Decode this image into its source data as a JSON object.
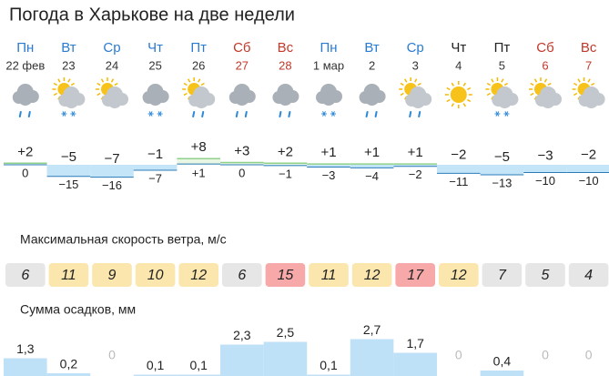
{
  "title": "Погода в Харькове на две недели",
  "wind_title": "Максимальная скорость ветра, м/с",
  "precip_title": "Сумма осадков, мм",
  "days": [
    {
      "weekday": "Пн",
      "date": "22 фев",
      "kind": "weekday",
      "icon": "cloudy-rain",
      "tmax": 2,
      "tmax_label": "+2",
      "tmin": 0,
      "tmin_label": "0",
      "wind": 6,
      "precip": 1.3,
      "precip_label": "1,3"
    },
    {
      "weekday": "Вт",
      "date": "23",
      "kind": "weekday",
      "icon": "partly-snow",
      "tmax": -5,
      "tmax_label": "−5",
      "tmin": -15,
      "tmin_label": "−15",
      "wind": 11,
      "precip": 0.2,
      "precip_label": "0,2"
    },
    {
      "weekday": "Ср",
      "date": "24",
      "kind": "weekday",
      "icon": "partly",
      "tmax": -7,
      "tmax_label": "−7",
      "tmin": -16,
      "tmin_label": "−16",
      "wind": 9,
      "precip": 0,
      "precip_label": "0"
    },
    {
      "weekday": "Чт",
      "date": "25",
      "kind": "weekday",
      "icon": "cloudy-snow",
      "tmax": -1,
      "tmax_label": "−1",
      "tmin": -7,
      "tmin_label": "−7",
      "wind": 10,
      "precip": 0.1,
      "precip_label": "0,1"
    },
    {
      "weekday": "Пт",
      "date": "26",
      "kind": "weekday",
      "icon": "partly-rain",
      "tmax": 8,
      "tmax_label": "+8",
      "tmin": 1,
      "tmin_label": "+1",
      "wind": 12,
      "precip": 0.1,
      "precip_label": "0,1"
    },
    {
      "weekday": "Сб",
      "date": "27",
      "kind": "weekend",
      "icon": "cloudy-rain",
      "tmax": 3,
      "tmax_label": "+3",
      "tmin": 0,
      "tmin_label": "0",
      "wind": 6,
      "precip": 2.3,
      "precip_label": "2,3"
    },
    {
      "weekday": "Вс",
      "date": "28",
      "kind": "weekend",
      "icon": "cloudy-rain",
      "tmax": 2,
      "tmax_label": "+2",
      "tmin": -1,
      "tmin_label": "−1",
      "wind": 15,
      "precip": 2.5,
      "precip_label": "2,5"
    },
    {
      "weekday": "Пн",
      "date": "1 мар",
      "kind": "weekday",
      "icon": "cloudy-snow",
      "tmax": 1,
      "tmax_label": "+1",
      "tmin": -3,
      "tmin_label": "−3",
      "wind": 11,
      "precip": 0.1,
      "precip_label": "0,1"
    },
    {
      "weekday": "Вт",
      "date": "2",
      "kind": "weekday",
      "icon": "cloudy-rain",
      "tmax": 1,
      "tmax_label": "+1",
      "tmin": -4,
      "tmin_label": "−4",
      "wind": 12,
      "precip": 2.7,
      "precip_label": "2,7"
    },
    {
      "weekday": "Ср",
      "date": "3",
      "kind": "weekday",
      "icon": "partly-rain",
      "tmax": 1,
      "tmax_label": "+1",
      "tmin": -2,
      "tmin_label": "−2",
      "wind": 17,
      "precip": 1.7,
      "precip_label": "1,7"
    },
    {
      "weekday": "Чт",
      "date": "4",
      "kind": "plain",
      "icon": "sun",
      "tmax": -2,
      "tmax_label": "−2",
      "tmin": -11,
      "tmin_label": "−11",
      "wind": 12,
      "precip": 0,
      "precip_label": "0"
    },
    {
      "weekday": "Пт",
      "date": "5",
      "kind": "plain",
      "icon": "partly-snow",
      "tmax": -5,
      "tmax_label": "−5",
      "tmin": -13,
      "tmin_label": "−13",
      "wind": 7,
      "precip": 0.4,
      "precip_label": "0,4"
    },
    {
      "weekday": "Сб",
      "date": "6",
      "kind": "weekend",
      "icon": "partly",
      "tmax": -3,
      "tmax_label": "−3",
      "tmin": -10,
      "tmin_label": "−10",
      "wind": 5,
      "precip": 0,
      "precip_label": "0"
    },
    {
      "weekday": "Вс",
      "date": "7",
      "kind": "weekend",
      "icon": "partly",
      "tmax": -2,
      "tmax_label": "−2",
      "tmin": -10,
      "tmin_label": "−10",
      "wind": 4,
      "precip": 0,
      "precip_label": "0"
    }
  ]
}
